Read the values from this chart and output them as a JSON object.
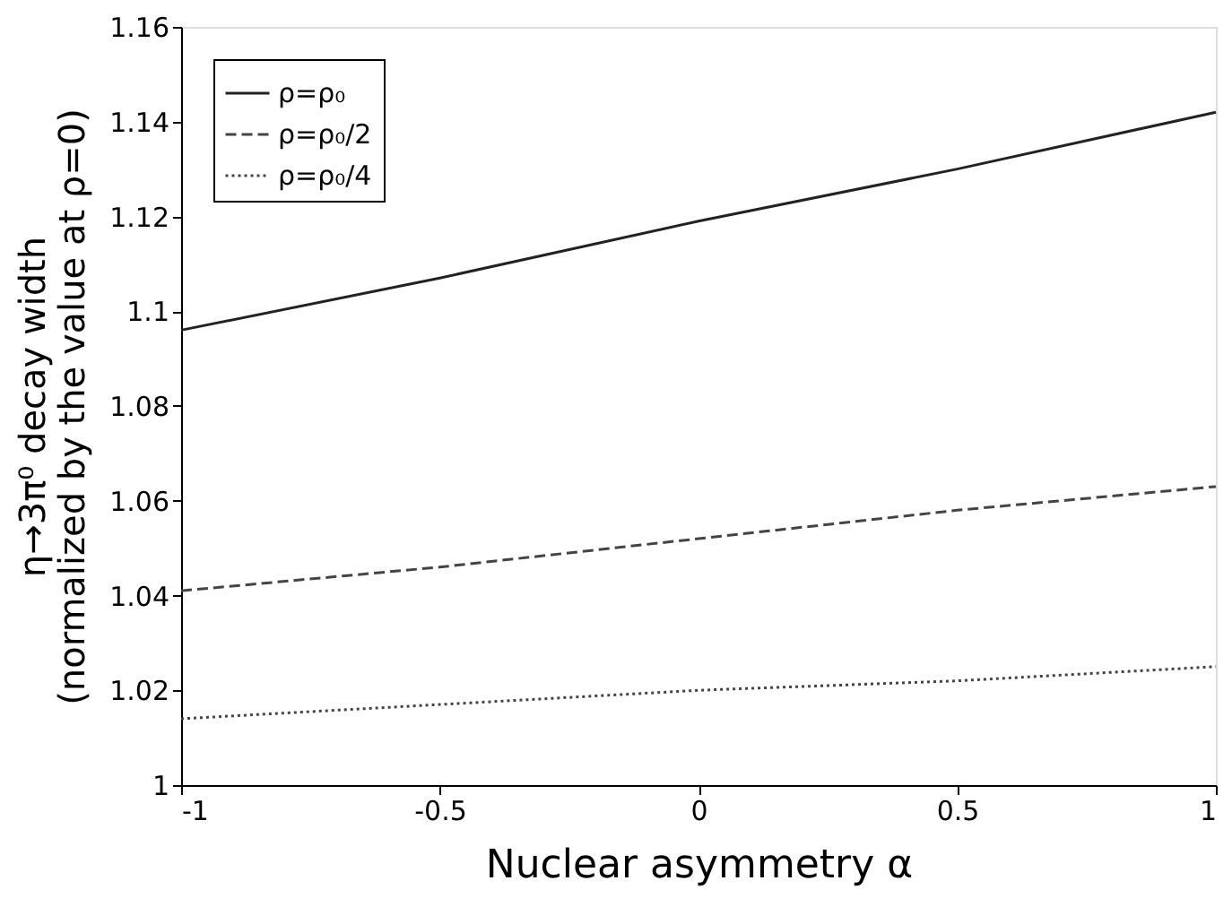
{
  "chart_data": {
    "type": "line",
    "xlabel": "Nuclear asymmetry α",
    "ylabel": "η→3π⁰ decay width\n(normalized by the value at ρ=0)",
    "x": [
      -1,
      -0.5,
      0,
      0.5,
      1
    ],
    "series": [
      {
        "name": "ρ=ρ₀",
        "color": "#222222",
        "line_style": "solid",
        "values": [
          1.096,
          1.107,
          1.119,
          1.13,
          1.142
        ]
      },
      {
        "name": "ρ=ρ₀/2",
        "color": "#444444",
        "line_style": "dashed",
        "values": [
          1.041,
          1.046,
          1.052,
          1.058,
          1.063
        ]
      },
      {
        "name": "ρ=ρ₀/4",
        "color": "#444444",
        "line_style": "dotted",
        "values": [
          1.014,
          1.017,
          1.02,
          1.022,
          1.025
        ]
      }
    ],
    "xlim": [
      -1,
      1
    ],
    "xticks": [
      -1,
      -0.5,
      0,
      0.5,
      1
    ],
    "ylim": [
      1,
      1.16
    ],
    "yticks": [
      1,
      1.02,
      1.04,
      1.06,
      1.08,
      1.1,
      1.12,
      1.14,
      1.16
    ],
    "grid": false,
    "legend": "top left",
    "marker": "none"
  }
}
